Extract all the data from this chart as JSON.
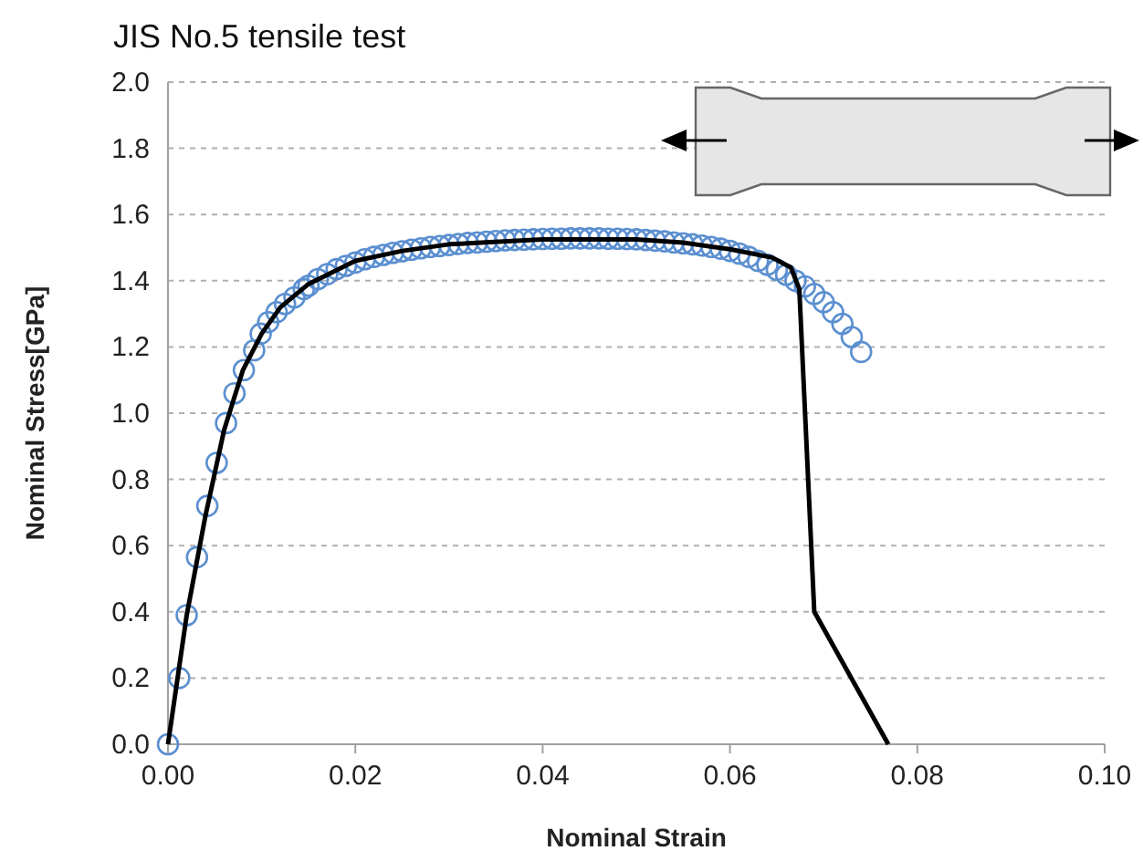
{
  "chart_data": {
    "type": "scatter",
    "title": "JIS No.5 tensile test",
    "xlabel": "Nominal Strain",
    "ylabel": "Nominal Stress[GPa]",
    "xlim": [
      0,
      0.1
    ],
    "xticks": [
      {
        "value": 0,
        "label": "0.00"
      },
      0.02,
      0.04,
      0.06,
      0.08,
      {
        "value": 0.1,
        "label": "0.10"
      }
    ],
    "ylim": [
      0,
      2
    ],
    "yticks": [
      {
        "value": 0,
        "label": "0.0"
      },
      0.2,
      0.4,
      0.6,
      0.8,
      {
        "value": 1,
        "label": "1.0"
      },
      1.2,
      1.4,
      1.6,
      1.8,
      {
        "value": 2,
        "label": "2.0"
      }
    ],
    "grid": "y",
    "series": [
      {
        "marker": "circle",
        "color": "#5b8fd0",
        "x": [
          0,
          0.0012,
          0.002,
          0.0031,
          0.0042,
          0.0052,
          0.0062,
          0.0071,
          0.0081,
          0.0092,
          0.0099,
          0.0107,
          0.0116,
          0.0125,
          0.0135,
          0.0145,
          0.015,
          0.016,
          0.017,
          0.018,
          0.019,
          0.02,
          0.021,
          0.022,
          0.023,
          0.024,
          0.025,
          0.026,
          0.027,
          0.028,
          0.029,
          0.03,
          0.031,
          0.032,
          0.033,
          0.034,
          0.035,
          0.036,
          0.037,
          0.038,
          0.039,
          0.04,
          0.041,
          0.042,
          0.043,
          0.044,
          0.045,
          0.046,
          0.047,
          0.048,
          0.049,
          0.05,
          0.051,
          0.052,
          0.053,
          0.054,
          0.055,
          0.056,
          0.057,
          0.058,
          0.059,
          0.06,
          0.061,
          0.062,
          0.063,
          0.064,
          0.065,
          0.066,
          0.067,
          0.068,
          0.069,
          0.07,
          0.071,
          0.072,
          0.073,
          0.074
        ],
        "values": [
          0,
          0.2,
          0.39,
          0.565,
          0.72,
          0.85,
          0.97,
          1.06,
          1.13,
          1.19,
          1.24,
          1.275,
          1.305,
          1.33,
          1.35,
          1.375,
          1.385,
          1.405,
          1.42,
          1.435,
          1.445,
          1.455,
          1.465,
          1.472,
          1.478,
          1.484,
          1.489,
          1.494,
          1.498,
          1.502,
          1.505,
          1.508,
          1.511,
          1.514,
          1.516,
          1.518,
          1.52,
          1.522,
          1.523,
          1.524,
          1.525,
          1.526,
          1.527,
          1.527,
          1.528,
          1.528,
          1.528,
          1.528,
          1.527,
          1.527,
          1.526,
          1.525,
          1.523,
          1.521,
          1.519,
          1.516,
          1.513,
          1.51,
          1.506,
          1.502,
          1.497,
          1.49,
          1.482,
          1.472,
          1.46,
          1.448,
          1.433,
          1.418,
          1.4,
          1.383,
          1.36,
          1.335,
          1.305,
          1.27,
          1.23,
          1.185
        ]
      },
      {
        "type": "line",
        "marker": "none",
        "line_style": "solid",
        "color": "#000000",
        "x": [
          0,
          0.002,
          0.004,
          0.006,
          0.008,
          0.01,
          0.012,
          0.015,
          0.02,
          0.025,
          0.03,
          0.04,
          0.05,
          0.055,
          0.06,
          0.0645,
          0.0665,
          0.0674,
          0.069,
          0.0769
        ],
        "values": [
          0,
          0.39,
          0.69,
          0.95,
          1.13,
          1.24,
          1.32,
          1.39,
          1.46,
          1.49,
          1.51,
          1.525,
          1.525,
          1.515,
          1.495,
          1.47,
          1.44,
          1.375,
          0.4,
          0
        ]
      }
    ]
  }
}
